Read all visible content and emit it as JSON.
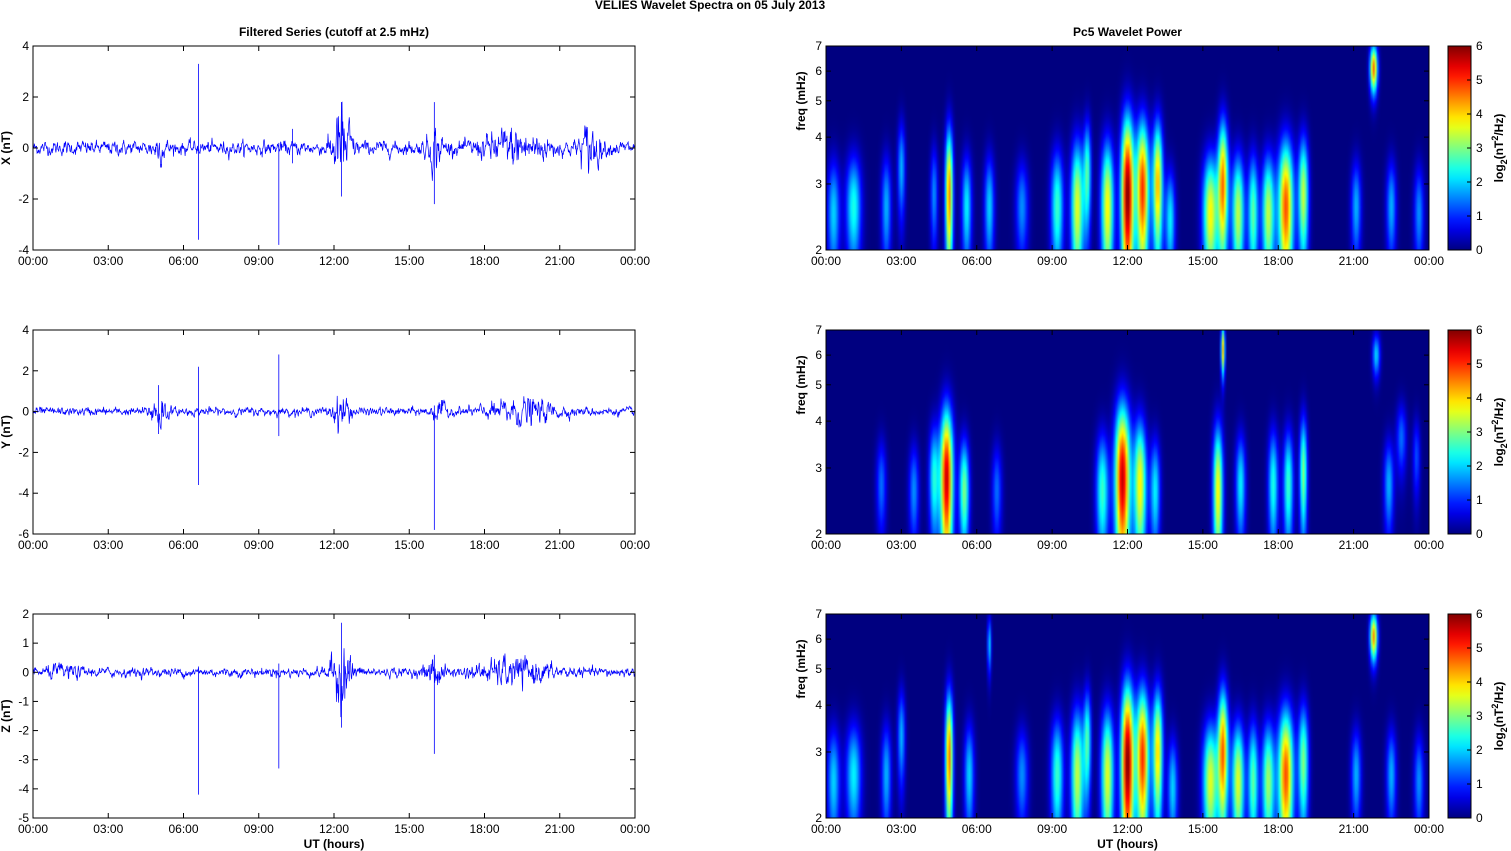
{
  "figure": {
    "suptitle": "VELIES Wavelet Spectra on 05 July      2013",
    "left_title": "Filtered Series (cutoff at 2.5 mHz)",
    "right_title": "Pc5 Wavelet Power"
  },
  "chart_data": [
    {
      "type": "line",
      "title": "Filtered Series (cutoff at 2.5 mHz)",
      "xlabel": "",
      "ylabel": "X (nT)",
      "xticks": [
        "00:00",
        "03:00",
        "06:00",
        "09:00",
        "12:00",
        "15:00",
        "18:00",
        "21:00",
        "00:00"
      ],
      "xlim_hours": [
        0,
        24
      ],
      "yticks": [
        "-4",
        "-2",
        "0",
        "2",
        "4"
      ],
      "ylim": [
        -4,
        4
      ],
      "grid": false,
      "series_color": "#0000ff",
      "baseline_noise_amp": 0.2,
      "bursts": [
        {
          "t": 12.3,
          "width": 0.35,
          "amp": 1.2
        },
        {
          "t": 16.0,
          "width": 0.3,
          "amp": 0.5
        },
        {
          "t": 19.2,
          "width": 1.2,
          "amp": 0.45
        },
        {
          "t": 22.2,
          "width": 0.4,
          "amp": 0.6
        },
        {
          "t": 5.0,
          "width": 0.25,
          "amp": 0.3
        }
      ],
      "spikes": [
        {
          "t": 6.6,
          "min": -3.6,
          "max": 3.3
        },
        {
          "t": 9.8,
          "min": -3.8,
          "max": 0.2
        },
        {
          "t": 16.0,
          "min": -2.2,
          "max": 1.8
        },
        {
          "t": 12.3,
          "min": -1.9,
          "max": 1.8
        },
        {
          "t": 10.35,
          "min": -0.6,
          "max": 0.75
        }
      ]
    },
    {
      "type": "line",
      "title": "",
      "xlabel": "",
      "ylabel": "Y (nT)",
      "xticks": [
        "00:00",
        "03:00",
        "06:00",
        "09:00",
        "12:00",
        "15:00",
        "18:00",
        "21:00",
        "00:00"
      ],
      "xlim_hours": [
        0,
        24
      ],
      "yticks": [
        "-6",
        "-4",
        "-2",
        "0",
        "2",
        "4"
      ],
      "ylim": [
        -6,
        4
      ],
      "grid": false,
      "series_color": "#0000ff",
      "baseline_noise_amp": 0.15,
      "bursts": [
        {
          "t": 5.0,
          "width": 0.3,
          "amp": 0.7
        },
        {
          "t": 12.3,
          "width": 0.35,
          "amp": 0.6
        },
        {
          "t": 19.5,
          "width": 1.3,
          "amp": 0.4
        },
        {
          "t": 16.2,
          "width": 0.3,
          "amp": 0.3
        }
      ],
      "spikes": [
        {
          "t": 6.6,
          "min": -3.6,
          "max": 2.2
        },
        {
          "t": 9.8,
          "min": -1.2,
          "max": 2.8
        },
        {
          "t": 16.0,
          "min": -5.8,
          "max": 0.3
        },
        {
          "t": 5.0,
          "min": -1.1,
          "max": 1.3
        }
      ]
    },
    {
      "type": "line",
      "title": "",
      "xlabel": "UT (hours)",
      "ylabel": "Z (nT)",
      "xticks": [
        "00:00",
        "03:00",
        "06:00",
        "09:00",
        "12:00",
        "15:00",
        "18:00",
        "21:00",
        "00:00"
      ],
      "xlim_hours": [
        0,
        24
      ],
      "yticks": [
        "-5",
        "-4",
        "-3",
        "-2",
        "-1",
        "0",
        "1",
        "2"
      ],
      "ylim": [
        -5,
        2
      ],
      "grid": false,
      "series_color": "#0000ff",
      "baseline_noise_amp": 0.12,
      "bursts": [
        {
          "t": 12.3,
          "width": 0.4,
          "amp": 0.8
        },
        {
          "t": 16.0,
          "width": 0.3,
          "amp": 0.35
        },
        {
          "t": 19.2,
          "width": 1.4,
          "amp": 0.3
        },
        {
          "t": 1.2,
          "width": 0.6,
          "amp": 0.12
        }
      ],
      "spikes": [
        {
          "t": 6.6,
          "min": -4.2,
          "max": 0.2
        },
        {
          "t": 9.8,
          "min": -3.3,
          "max": 0.3
        },
        {
          "t": 16.0,
          "min": -2.8,
          "max": 0.6
        },
        {
          "t": 12.3,
          "min": -1.9,
          "max": 1.7
        }
      ]
    },
    {
      "type": "heatmap",
      "title": "Pc5 Wavelet Power",
      "xlabel": "",
      "ylabel": "freq (mHz)",
      "xticks": [
        "00:00",
        "03:00",
        "06:00",
        "09:00",
        "12:00",
        "15:00",
        "18:00",
        "21:00",
        "00:00"
      ],
      "xlim_hours": [
        0,
        24
      ],
      "yticks": [
        "2",
        "3",
        "4",
        "5",
        "6",
        "7"
      ],
      "ylim_mhz": [
        2,
        7
      ],
      "yscale": "log",
      "colorbar": {
        "label": "log2(nT^2/Hz)",
        "ticks": [
          "0",
          "1",
          "2",
          "3",
          "4",
          "5",
          "6"
        ],
        "range": [
          0,
          6
        ],
        "colormap": "jet"
      },
      "blobs": [
        {
          "t": 0.3,
          "f": 2.5,
          "w": 0.25,
          "h": 0.9,
          "a": 2.0
        },
        {
          "t": 1.1,
          "f": 2.6,
          "w": 0.3,
          "h": 0.9,
          "a": 2.4
        },
        {
          "t": 2.4,
          "f": 2.6,
          "w": 0.2,
          "h": 0.9,
          "a": 1.8
        },
        {
          "t": 3.0,
          "f": 3.3,
          "w": 0.15,
          "h": 1.0,
          "a": 1.8
        },
        {
          "t": 4.3,
          "f": 2.8,
          "w": 0.15,
          "h": 0.9,
          "a": 1.6
        },
        {
          "t": 4.9,
          "f": 2.8,
          "w": 0.15,
          "h": 1.3,
          "a": 4.5
        },
        {
          "t": 5.6,
          "f": 2.6,
          "w": 0.2,
          "h": 0.9,
          "a": 2.2
        },
        {
          "t": 6.5,
          "f": 2.6,
          "w": 0.2,
          "h": 0.9,
          "a": 2.0
        },
        {
          "t": 7.8,
          "f": 2.6,
          "w": 0.25,
          "h": 0.8,
          "a": 1.6
        },
        {
          "t": 9.2,
          "f": 2.6,
          "w": 0.25,
          "h": 1.0,
          "a": 2.6
        },
        {
          "t": 10.0,
          "f": 2.6,
          "w": 0.25,
          "h": 1.2,
          "a": 3.6
        },
        {
          "t": 10.4,
          "f": 3.2,
          "w": 0.15,
          "h": 1.1,
          "a": 2.6
        },
        {
          "t": 11.2,
          "f": 2.6,
          "w": 0.25,
          "h": 1.2,
          "a": 3.8
        },
        {
          "t": 12.0,
          "f": 2.8,
          "w": 0.25,
          "h": 1.6,
          "a": 6.0
        },
        {
          "t": 12.6,
          "f": 2.9,
          "w": 0.25,
          "h": 1.4,
          "a": 5.0
        },
        {
          "t": 13.2,
          "f": 3.0,
          "w": 0.2,
          "h": 1.3,
          "a": 4.2
        },
        {
          "t": 13.7,
          "f": 2.4,
          "w": 0.2,
          "h": 0.8,
          "a": 2.2
        },
        {
          "t": 15.3,
          "f": 2.5,
          "w": 0.3,
          "h": 1.0,
          "a": 3.8
        },
        {
          "t": 15.8,
          "f": 3.0,
          "w": 0.2,
          "h": 1.3,
          "a": 4.5
        },
        {
          "t": 16.4,
          "f": 2.5,
          "w": 0.25,
          "h": 1.0,
          "a": 3.4
        },
        {
          "t": 17.0,
          "f": 2.5,
          "w": 0.2,
          "h": 1.0,
          "a": 2.8
        },
        {
          "t": 17.6,
          "f": 2.5,
          "w": 0.25,
          "h": 1.0,
          "a": 3.4
        },
        {
          "t": 18.3,
          "f": 2.6,
          "w": 0.3,
          "h": 1.2,
          "a": 4.8
        },
        {
          "t": 19.0,
          "f": 2.8,
          "w": 0.2,
          "h": 1.1,
          "a": 3.4
        },
        {
          "t": 21.1,
          "f": 2.6,
          "w": 0.2,
          "h": 0.8,
          "a": 1.8
        },
        {
          "t": 21.8,
          "f": 6.1,
          "w": 0.15,
          "h": 0.9,
          "a": 4.6
        },
        {
          "t": 22.5,
          "f": 2.6,
          "w": 0.2,
          "h": 0.8,
          "a": 1.8
        },
        {
          "t": 23.6,
          "f": 2.5,
          "w": 0.2,
          "h": 0.8,
          "a": 1.6
        }
      ]
    },
    {
      "type": "heatmap",
      "title": "",
      "xlabel": "",
      "ylabel": "freq (mHz)",
      "xticks": [
        "00:00",
        "03:00",
        "06:00",
        "09:00",
        "12:00",
        "15:00",
        "18:00",
        "21:00",
        "00:00"
      ],
      "xlim_hours": [
        0,
        24
      ],
      "yticks": [
        "2",
        "3",
        "4",
        "5",
        "6",
        "7"
      ],
      "ylim_mhz": [
        2,
        7
      ],
      "yscale": "log",
      "colorbar": {
        "label": "log2(nT^2/Hz)",
        "ticks": [
          "0",
          "1",
          "2",
          "3",
          "4",
          "5",
          "6"
        ],
        "range": [
          0,
          6
        ],
        "colormap": "jet"
      },
      "blobs": [
        {
          "t": 2.2,
          "f": 2.7,
          "w": 0.2,
          "h": 0.8,
          "a": 1.4
        },
        {
          "t": 3.5,
          "f": 2.6,
          "w": 0.2,
          "h": 0.8,
          "a": 1.6
        },
        {
          "t": 4.3,
          "f": 2.8,
          "w": 0.2,
          "h": 1.0,
          "a": 2.4
        },
        {
          "t": 4.8,
          "f": 2.8,
          "w": 0.25,
          "h": 1.4,
          "a": 5.6
        },
        {
          "t": 5.5,
          "f": 2.6,
          "w": 0.2,
          "h": 0.9,
          "a": 3.0
        },
        {
          "t": 6.8,
          "f": 2.6,
          "w": 0.2,
          "h": 0.8,
          "a": 1.4
        },
        {
          "t": 11.0,
          "f": 2.6,
          "w": 0.25,
          "h": 1.0,
          "a": 2.6
        },
        {
          "t": 11.8,
          "f": 2.8,
          "w": 0.3,
          "h": 1.5,
          "a": 5.6
        },
        {
          "t": 12.5,
          "f": 2.7,
          "w": 0.25,
          "h": 1.2,
          "a": 3.8
        },
        {
          "t": 13.1,
          "f": 2.6,
          "w": 0.2,
          "h": 0.9,
          "a": 2.2
        },
        {
          "t": 15.6,
          "f": 2.6,
          "w": 0.2,
          "h": 1.2,
          "a": 3.8
        },
        {
          "t": 15.8,
          "f": 6.2,
          "w": 0.08,
          "h": 1.0,
          "a": 4.0
        },
        {
          "t": 16.5,
          "f": 2.7,
          "w": 0.2,
          "h": 0.9,
          "a": 2.2
        },
        {
          "t": 17.8,
          "f": 2.7,
          "w": 0.2,
          "h": 1.0,
          "a": 2.4
        },
        {
          "t": 18.4,
          "f": 2.7,
          "w": 0.2,
          "h": 1.0,
          "a": 2.6
        },
        {
          "t": 19.0,
          "f": 2.9,
          "w": 0.15,
          "h": 1.1,
          "a": 3.0
        },
        {
          "t": 21.9,
          "f": 6.0,
          "w": 0.15,
          "h": 0.8,
          "a": 2.0
        },
        {
          "t": 22.4,
          "f": 2.7,
          "w": 0.2,
          "h": 0.8,
          "a": 1.8
        },
        {
          "t": 22.9,
          "f": 3.6,
          "w": 0.2,
          "h": 0.8,
          "a": 1.4
        },
        {
          "t": 23.5,
          "f": 3.2,
          "w": 0.15,
          "h": 0.8,
          "a": 1.2
        }
      ]
    },
    {
      "type": "heatmap",
      "title": "",
      "xlabel": "UT (hours)",
      "ylabel": "freq (mHz)",
      "xticks": [
        "00:00",
        "03:00",
        "06:00",
        "09:00",
        "12:00",
        "15:00",
        "18:00",
        "21:00",
        "00:00"
      ],
      "xlim_hours": [
        0,
        24
      ],
      "yticks": [
        "2",
        "3",
        "4",
        "5",
        "6",
        "7"
      ],
      "ylim_mhz": [
        2,
        7
      ],
      "yscale": "log",
      "colorbar": {
        "label": "log2(nT^2/Hz)",
        "ticks": [
          "0",
          "1",
          "2",
          "3",
          "4",
          "5",
          "6"
        ],
        "range": [
          0,
          6
        ],
        "colormap": "jet"
      },
      "blobs": [
        {
          "t": 0.3,
          "f": 2.5,
          "w": 0.25,
          "h": 0.9,
          "a": 2.0
        },
        {
          "t": 1.1,
          "f": 2.6,
          "w": 0.3,
          "h": 0.9,
          "a": 2.2
        },
        {
          "t": 2.4,
          "f": 2.6,
          "w": 0.2,
          "h": 0.9,
          "a": 1.8
        },
        {
          "t": 3.0,
          "f": 3.3,
          "w": 0.15,
          "h": 1.0,
          "a": 1.8
        },
        {
          "t": 4.9,
          "f": 2.9,
          "w": 0.15,
          "h": 1.3,
          "a": 4.6
        },
        {
          "t": 5.7,
          "f": 2.6,
          "w": 0.2,
          "h": 0.9,
          "a": 2.0
        },
        {
          "t": 6.5,
          "f": 5.8,
          "w": 0.08,
          "h": 1.0,
          "a": 2.0
        },
        {
          "t": 7.8,
          "f": 2.6,
          "w": 0.25,
          "h": 0.8,
          "a": 1.6
        },
        {
          "t": 9.2,
          "f": 2.6,
          "w": 0.25,
          "h": 1.0,
          "a": 2.6
        },
        {
          "t": 10.0,
          "f": 2.6,
          "w": 0.25,
          "h": 1.2,
          "a": 3.4
        },
        {
          "t": 10.4,
          "f": 3.2,
          "w": 0.15,
          "h": 1.1,
          "a": 2.6
        },
        {
          "t": 11.2,
          "f": 2.6,
          "w": 0.25,
          "h": 1.2,
          "a": 3.6
        },
        {
          "t": 12.0,
          "f": 2.8,
          "w": 0.25,
          "h": 1.6,
          "a": 6.0
        },
        {
          "t": 12.6,
          "f": 2.9,
          "w": 0.25,
          "h": 1.4,
          "a": 5.0
        },
        {
          "t": 13.2,
          "f": 3.0,
          "w": 0.2,
          "h": 1.3,
          "a": 4.0
        },
        {
          "t": 13.8,
          "f": 2.4,
          "w": 0.2,
          "h": 0.8,
          "a": 2.0
        },
        {
          "t": 15.3,
          "f": 2.5,
          "w": 0.3,
          "h": 1.0,
          "a": 3.6
        },
        {
          "t": 15.8,
          "f": 3.0,
          "w": 0.2,
          "h": 1.3,
          "a": 4.6
        },
        {
          "t": 16.4,
          "f": 2.5,
          "w": 0.25,
          "h": 1.0,
          "a": 3.6
        },
        {
          "t": 17.0,
          "f": 2.5,
          "w": 0.2,
          "h": 1.0,
          "a": 2.8
        },
        {
          "t": 17.6,
          "f": 2.5,
          "w": 0.25,
          "h": 1.0,
          "a": 3.2
        },
        {
          "t": 18.3,
          "f": 2.6,
          "w": 0.3,
          "h": 1.2,
          "a": 4.8
        },
        {
          "t": 19.0,
          "f": 2.8,
          "w": 0.2,
          "h": 1.1,
          "a": 3.0
        },
        {
          "t": 21.1,
          "f": 2.6,
          "w": 0.2,
          "h": 0.8,
          "a": 1.8
        },
        {
          "t": 21.8,
          "f": 6.1,
          "w": 0.15,
          "h": 0.9,
          "a": 4.4
        },
        {
          "t": 22.5,
          "f": 2.6,
          "w": 0.2,
          "h": 0.8,
          "a": 1.8
        },
        {
          "t": 23.6,
          "f": 2.5,
          "w": 0.2,
          "h": 0.8,
          "a": 1.6
        }
      ]
    }
  ]
}
